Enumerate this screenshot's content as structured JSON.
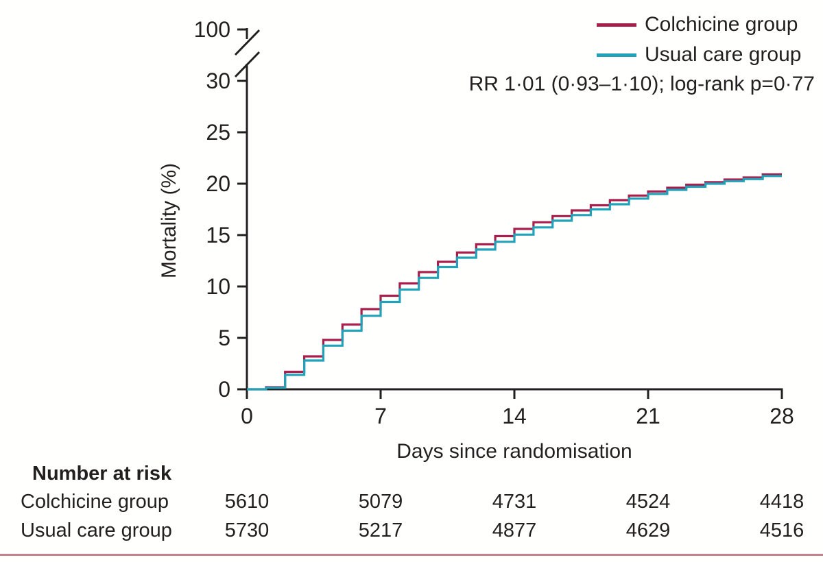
{
  "figure": {
    "legend": [
      {
        "label": "Colchicine group",
        "color": "#a81e4d"
      },
      {
        "label": "Usual care group",
        "color": "#22a2b8"
      }
    ],
    "annotation": "RR 1·01 (0·93–1·10); log-rank p=0·77",
    "y_axis": {
      "title": "Mortality (%)",
      "ticks": [
        0,
        5,
        10,
        15,
        20,
        25,
        30
      ],
      "break_top_label": "100"
    },
    "x_axis": {
      "title": "Days since randomisation",
      "ticks": [
        0,
        7,
        14,
        21,
        28
      ]
    },
    "number_at_risk": {
      "header": "Number at risk",
      "rows": [
        {
          "label": "Colchicine group",
          "values": [
            "5610",
            "5079",
            "4731",
            "4524",
            "4418"
          ]
        },
        {
          "label": "Usual care group",
          "values": [
            "5730",
            "5217",
            "4877",
            "4629",
            "4516"
          ]
        }
      ]
    },
    "colors": {
      "colchicine": "#a81e4d",
      "usual_care": "#22a2b8",
      "text": "#231f20",
      "axis": "#231f20",
      "bottom_rule": "#c4808d"
    }
  },
  "chart_data": {
    "type": "line",
    "subtype": "step_survival",
    "title": "",
    "xlabel": "Days since randomisation",
    "ylabel": "Mortality (%)",
    "xlim": [
      0,
      28
    ],
    "ylim": [
      0,
      30
    ],
    "y_axis_break_top_label": 100,
    "x_ticks": [
      0,
      7,
      14,
      21,
      28
    ],
    "y_ticks": [
      0,
      5,
      10,
      15,
      20,
      25,
      30
    ],
    "grid": false,
    "legend_position": "top-right",
    "annotation": "RR 1·01 (0·93–1·10); log-rank p=0·77",
    "x_days": [
      0,
      1,
      2,
      3,
      4,
      5,
      6,
      7,
      8,
      9,
      10,
      11,
      12,
      13,
      14,
      15,
      16,
      17,
      18,
      19,
      20,
      21,
      22,
      23,
      24,
      25,
      26,
      27,
      28
    ],
    "series": [
      {
        "name": "Colchicine group",
        "color": "#a81e4d",
        "values": [
          0,
          0.2,
          1.7,
          3.2,
          4.8,
          6.3,
          7.8,
          9.1,
          10.3,
          11.4,
          12.4,
          13.3,
          14.1,
          14.9,
          15.6,
          16.25,
          16.85,
          17.4,
          17.9,
          18.4,
          18.85,
          19.25,
          19.6,
          19.9,
          20.15,
          20.4,
          20.6,
          20.9,
          20.9
        ]
      },
      {
        "name": "Usual care group",
        "color": "#22a2b8",
        "values": [
          0,
          0.15,
          1.4,
          2.8,
          4.25,
          5.7,
          7.15,
          8.5,
          9.7,
          10.85,
          11.9,
          12.8,
          13.6,
          14.35,
          15.05,
          15.75,
          16.4,
          16.95,
          17.5,
          18.0,
          18.55,
          19.0,
          19.4,
          19.7,
          20.0,
          20.25,
          20.45,
          20.75,
          20.75
        ]
      }
    ],
    "number_at_risk": {
      "times": [
        0,
        7,
        14,
        21,
        28
      ],
      "Colchicine group": [
        5610,
        5079,
        4731,
        4524,
        4418
      ],
      "Usual care group": [
        5730,
        5217,
        4877,
        4629,
        4516
      ]
    }
  }
}
